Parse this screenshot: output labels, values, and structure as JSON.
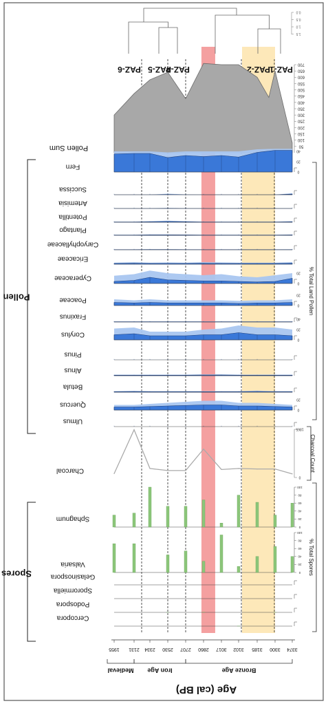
{
  "chart_data": {
    "type": "area",
    "orientation": "rotated-90",
    "age_axis": {
      "label": "Age (cal BP)",
      "ticks": [
        1955,
        2131,
        2334,
        2530,
        2707,
        2860,
        3017,
        3102,
        3185,
        3300,
        3374
      ],
      "periods": [
        {
          "name": "Medieval",
          "from": 1955,
          "to": 2131
        },
        {
          "name": "Iron Age",
          "from": 2131,
          "to": 2707
        },
        {
          "name": "Bronze Age",
          "from": 2707,
          "to": 3374
        }
      ]
    },
    "zones": [
      {
        "name": "PAZ-6",
        "from": 1955,
        "to": 2290
      },
      {
        "name": "PAZ-5",
        "from": 2290,
        "to": 2560
      },
      {
        "name": "PAZ-4",
        "from": 2560,
        "to": 2800
      },
      {
        "name": "PAZ-3",
        "from": 2800,
        "to": 3150
      },
      {
        "name": "PAZ-2",
        "from": 3150,
        "to": 3300
      },
      {
        "name": "PAZ-1",
        "from": 3300,
        "to": 3374
      }
    ],
    "highlight_bands": [
      {
        "color": "#f08080",
        "from": 2840,
        "to": 2880
      },
      {
        "color": "#fbd98a",
        "from": 3120,
        "to": 3300
      }
    ],
    "dendrogram_ticks": [
      "0.0",
      "0.5",
      "1.0",
      "1.5"
    ],
    "pollen_sum": {
      "name": "Pollen Sum",
      "ticks": [
        50,
        100,
        150,
        200,
        250,
        300,
        350,
        400,
        450,
        500,
        550,
        600,
        650,
        700
      ],
      "ages": [
        1955,
        2131,
        2334,
        2530,
        2707,
        2860,
        3017,
        3102,
        3185,
        3260,
        3300,
        3374
      ],
      "values": [
        300,
        470,
        580,
        640,
        430,
        710,
        700,
        700,
        600,
        440,
        650,
        80
      ]
    },
    "groups": [
      {
        "name": "Pollen",
        "axis_label": "% Total Land Pollen"
      },
      {
        "name": "Spores",
        "axis_label": "% Total Spores"
      }
    ],
    "pollen_taxa": [
      {
        "name": "Fern",
        "ticks": [
          "0",
          "20",
          "40"
        ],
        "values": [
          35,
          36,
          36,
          28,
          32,
          30,
          32,
          29,
          38,
          42,
          42
        ],
        "exag": [
          40,
          40,
          40,
          38,
          40,
          40,
          40,
          40,
          44,
          45,
          45
        ]
      },
      {
        "name": "Succissa",
        "ticks": [],
        "values": [
          0,
          0,
          0,
          0.5,
          0,
          0,
          0,
          0,
          0,
          0,
          1.2
        ],
        "exag": [
          0,
          0,
          0,
          2,
          0.5,
          0,
          0,
          0,
          0,
          0,
          3
        ]
      },
      {
        "name": "Artemisia",
        "ticks": [],
        "values": [
          0,
          0,
          0,
          0.3,
          0,
          0,
          0,
          0,
          0,
          0,
          0
        ],
        "exag": [
          0.5,
          0.5,
          0.5,
          1,
          0.5,
          0.5,
          0.5,
          0.5,
          0.5,
          0.5,
          0.5
        ]
      },
      {
        "name": "Potentilla",
        "ticks": [],
        "values": [
          0.5,
          0.5,
          1,
          1.5,
          1,
          0.5,
          0.5,
          0.5,
          0.5,
          0.5,
          1
        ],
        "exag": [
          1,
          1,
          2,
          3,
          2,
          1,
          1,
          1,
          1,
          1,
          2
        ]
      },
      {
        "name": "Plantago",
        "ticks": [],
        "values": [
          0.5,
          0.5,
          1,
          1,
          0.8,
          0.5,
          0.5,
          0.5,
          0.5,
          0.5,
          0.8
        ],
        "exag": [
          1,
          1,
          1.5,
          1.5,
          1.2,
          1,
          1,
          1,
          1,
          1,
          1.5
        ]
      },
      {
        "name": "Caryophyllaceae",
        "ticks": [],
        "values": [
          0.3,
          0.3,
          0.5,
          0.5,
          0.3,
          0.3,
          0.3,
          0.3,
          0.3,
          0.3,
          0.3
        ],
        "exag": [
          0.8,
          0.8,
          1,
          1,
          0.8,
          0.8,
          0.8,
          0.8,
          0.8,
          0.8,
          1
        ]
      },
      {
        "name": "Ericaceae",
        "ticks": [],
        "values": [
          1.5,
          1.8,
          1.5,
          1.5,
          1.5,
          1.8,
          1.5,
          1.5,
          1.5,
          1.5,
          2
        ],
        "exag": [
          3,
          4,
          3,
          3.5,
          3,
          4,
          3.5,
          3,
          3,
          3,
          4
        ]
      },
      {
        "name": "Cyperaceae",
        "ticks": [
          "0",
          "20"
        ],
        "values": [
          4,
          6,
          12,
          7,
          6,
          5,
          5,
          4,
          3,
          4,
          10
        ],
        "exag": [
          15,
          18,
          25,
          20,
          18,
          16,
          18,
          14,
          12,
          16,
          20
        ]
      },
      {
        "name": "Poaceae",
        "ticks": [
          "0",
          "20"
        ],
        "values": [
          6,
          5,
          6,
          5,
          5,
          5,
          5,
          4,
          5,
          5,
          6
        ],
        "exag": [
          12,
          10,
          12,
          10,
          10,
          10,
          10,
          9,
          10,
          10,
          12
        ]
      },
      {
        "name": "Fraxinus",
        "ticks": [],
        "values": [
          0.5,
          0.5,
          0.5,
          0.5,
          0.5,
          0.5,
          0.5,
          0.5,
          0.5,
          0.5,
          0.5
        ],
        "exag": [
          1.2,
          1.2,
          1.2,
          1.2,
          1.2,
          1.2,
          1.2,
          1.2,
          1.2,
          1.2,
          1.2
        ]
      },
      {
        "name": "Corylus",
        "ticks": [
          "0",
          "20",
          "40"
        ],
        "values": [
          10,
          12,
          8,
          8,
          8,
          10,
          10,
          14,
          10,
          10,
          8
        ],
        "exag": [
          22,
          24,
          16,
          16,
          16,
          20,
          22,
          28,
          24,
          24,
          20
        ]
      },
      {
        "name": "Pinus",
        "ticks": [],
        "values": [
          0,
          0,
          0,
          0,
          0,
          0,
          0,
          0,
          0,
          0,
          0
        ],
        "exag": [
          0.3,
          0.3,
          0.3,
          0.3,
          0.3,
          0.3,
          0.3,
          0.3,
          0.3,
          0.3,
          0.3
        ]
      },
      {
        "name": "Alnus",
        "ticks": [],
        "values": [
          1,
          1,
          1,
          1,
          1,
          1.2,
          1.2,
          1,
          1,
          1,
          1
        ],
        "exag": [
          2,
          2,
          2,
          2,
          2,
          2.5,
          2.5,
          2,
          2,
          2,
          2
        ]
      },
      {
        "name": "Betula",
        "ticks": [],
        "values": [
          1,
          1.2,
          1,
          1,
          1,
          1,
          1,
          1,
          1.2,
          1,
          1
        ],
        "exag": [
          2,
          2.5,
          2,
          2,
          2,
          2,
          2,
          2,
          3,
          2,
          2
        ]
      },
      {
        "name": "Quercus",
        "ticks": [
          "0",
          "20"
        ],
        "values": [
          6,
          6,
          7,
          8,
          9,
          10,
          10,
          8,
          8,
          7,
          6
        ],
        "exag": [
          10,
          10,
          12,
          14,
          16,
          18,
          18,
          14,
          14,
          12,
          10
        ]
      },
      {
        "name": "Ulmus",
        "ticks": [],
        "values": [
          0,
          0,
          0,
          0,
          0,
          0,
          0,
          0,
          0,
          0,
          0
        ],
        "exag": [
          0,
          0,
          0,
          0,
          0,
          0,
          0,
          0,
          0,
          0,
          0
        ]
      }
    ],
    "charcoal": {
      "name": "Charcoal",
      "axis_label": "Charcoal Count",
      "ticks": [
        "0",
        "1865"
      ],
      "ages": [
        1955,
        2131,
        2334,
        2530,
        2707,
        2860,
        3017,
        3102,
        3185,
        3300,
        3374
      ],
      "values": [
        150,
        1850,
        350,
        270,
        270,
        1100,
        310,
        350,
        330,
        330,
        140
      ]
    },
    "spore_taxa": [
      {
        "name": "Sphagnum",
        "ticks": [
          "0",
          "20",
          "40",
          "60",
          "80",
          "100"
        ],
        "ages": [
          1955,
          2131,
          2334,
          2530,
          2707,
          2860,
          3017,
          3102,
          3185,
          3300,
          3374
        ],
        "values": [
          30,
          35,
          100,
          52,
          52,
          68,
          10,
          80,
          62,
          30,
          60
        ]
      },
      {
        "name": "Valsaria",
        "ticks": [
          "0",
          "20",
          "40",
          "60",
          "80",
          "100"
        ],
        "ages": [
          1955,
          2131,
          2334,
          2530,
          2707,
          2860,
          3017,
          3102,
          3185,
          3300,
          3374
        ],
        "values": [
          72,
          72,
          0,
          44,
          54,
          28,
          94,
          15,
          40,
          65,
          40
        ]
      },
      {
        "name": "Gelasinospora",
        "ticks": [],
        "ages": [
          1955,
          2131,
          2334,
          2530,
          2707,
          2860,
          3017,
          3102,
          3185,
          3300,
          3374
        ],
        "values": [
          0,
          0,
          0,
          0,
          0,
          0,
          0,
          0,
          0,
          0,
          0
        ]
      },
      {
        "name": "Sporormiella",
        "ticks": [],
        "ages": [
          1955,
          2131,
          2334,
          2530,
          2707,
          2860,
          3017,
          3102,
          3185,
          3300,
          3374
        ],
        "values": [
          0,
          0,
          0,
          0,
          0,
          0,
          0,
          0,
          0,
          0,
          0
        ]
      },
      {
        "name": "Podospora",
        "ticks": [],
        "ages": [
          1955,
          2131,
          2334,
          2530,
          2707,
          2860,
          3017,
          3102,
          3185,
          3300,
          3374
        ],
        "values": [
          0,
          0,
          0,
          1,
          0,
          3,
          0,
          0,
          0,
          1,
          0
        ]
      },
      {
        "name": "Cercopora",
        "ticks": [],
        "ages": [
          1955,
          2131,
          2334,
          2530,
          2707,
          2860,
          3017,
          3102,
          3185,
          3300,
          3374
        ],
        "values": [
          0,
          0,
          0,
          0,
          0,
          0,
          0,
          2,
          0,
          0,
          0
        ]
      }
    ],
    "colors": {
      "pollen_fill": "#3a78d8",
      "pollen_exag": "#a9c6f0",
      "pollen_line": "#1f3f7a",
      "pollen_sum_fill": "#a8a8a8",
      "spore_bar": "#8cc67a",
      "charcoal_line": "#aaaaaa",
      "zone_line": "#222222"
    }
  }
}
